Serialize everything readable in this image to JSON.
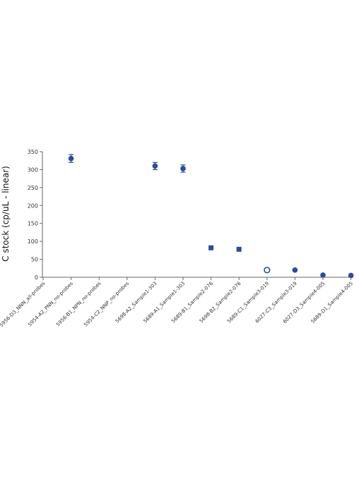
{
  "chart_data": {
    "type": "scatter",
    "ylabel": "C stock (cp/uL - linear)",
    "xlabel": "",
    "ylim": [
      0,
      350
    ],
    "yticks": [
      0,
      50,
      100,
      150,
      200,
      250,
      300,
      350
    ],
    "grid": false,
    "legend": "none",
    "categories": [
      "5956-D3_NNN_all-probes",
      "5954-A2_PNN_no-probes",
      "5956-B1_NPN_no-probes",
      "5954-C2_NNP_no-probes",
      "5698-A2_Sample1-303",
      "5689-A1_Sample1-303",
      "5689-B1_Sample2-076",
      "5698-B2_Sample2-076",
      "5689-C1_Sample3-019",
      "6027-C3_Sample3-019",
      "6027-D3_Sample4-005",
      "5689-D1_Sample4-005"
    ],
    "points": [
      {
        "category": "5954-A2_PNN_no-probes",
        "y": 331,
        "err": 11,
        "marker": "circle"
      },
      {
        "category": "5698-A2_Sample1-303",
        "y": 310,
        "err": 10,
        "marker": "circle"
      },
      {
        "category": "5689-A1_Sample1-303",
        "y": 303,
        "err": 10,
        "marker": "circle"
      },
      {
        "category": "5689-B1_Sample2-076",
        "y": 82,
        "err": 0,
        "marker": "square"
      },
      {
        "category": "5698-B2_Sample2-076",
        "y": 78,
        "err": 0,
        "marker": "square"
      },
      {
        "category": "5689-C1_Sample3-019",
        "y": 20,
        "err": 0,
        "marker": "open-circle"
      },
      {
        "category": "6027-C3_Sample3-019",
        "y": 20,
        "err": 0,
        "marker": "circle"
      },
      {
        "category": "6027-D3_Sample4-005",
        "y": 6,
        "err": 0,
        "marker": "circle"
      },
      {
        "category": "5689-D1_Sample4-005",
        "y": 5,
        "err": 0,
        "marker": "circle"
      }
    ],
    "color": "#2b4c9b"
  }
}
